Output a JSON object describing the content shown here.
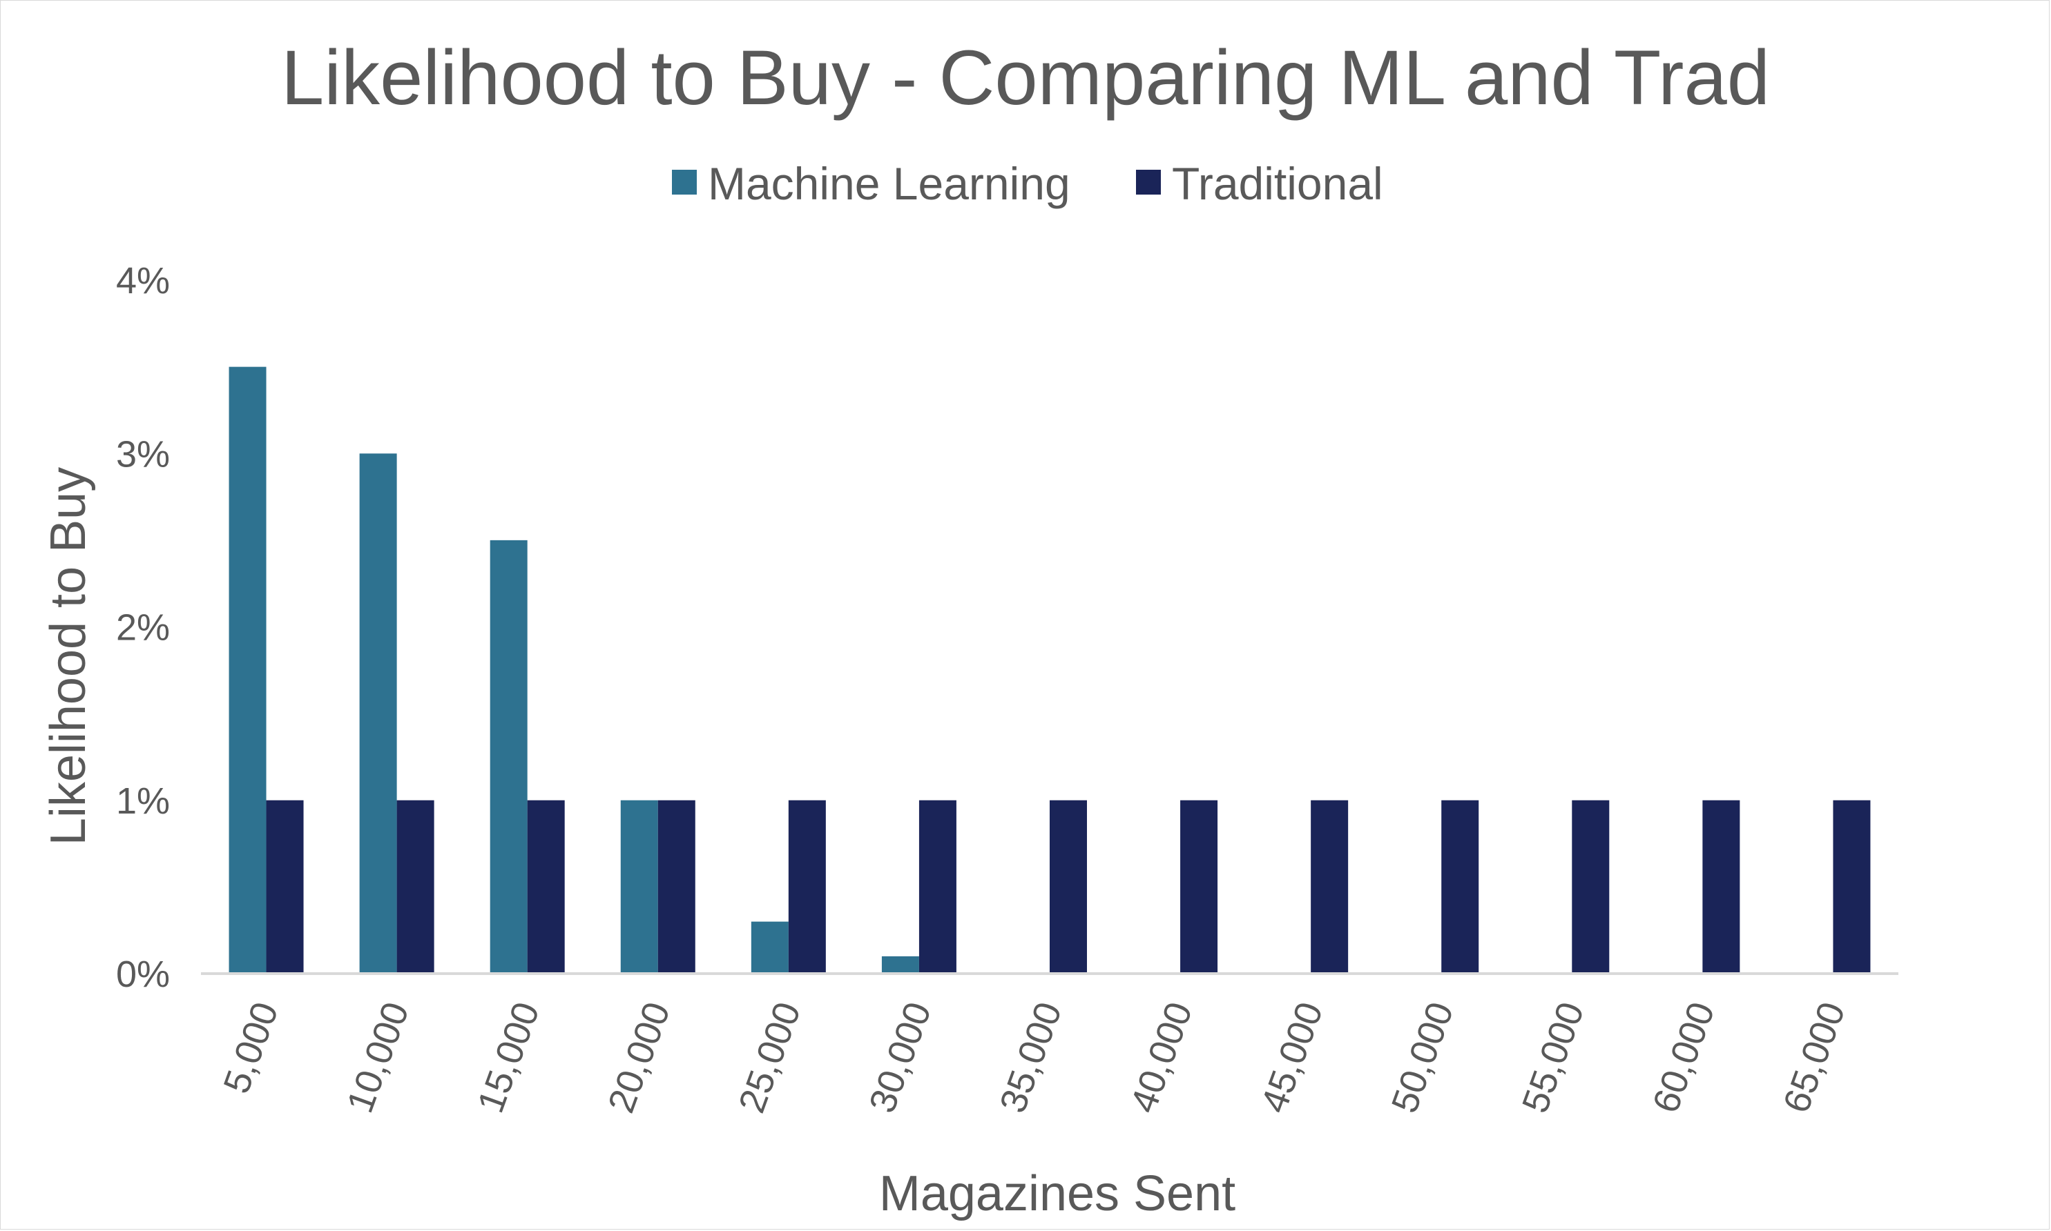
{
  "chart_data": {
    "type": "bar",
    "title": "Likelihood to Buy - Comparing ML and Trad",
    "xlabel": "Magazines Sent",
    "ylabel": "Likelihood to Buy",
    "categories": [
      "5,000",
      "10,000",
      "15,000",
      "20,000",
      "25,000",
      "30,000",
      "35,000",
      "40,000",
      "45,000",
      "50,000",
      "55,000",
      "60,000",
      "65,000"
    ],
    "series": [
      {
        "name": "Machine Learning",
        "color": "#2e7290",
        "values": [
          0.035,
          0.03,
          0.025,
          0.01,
          0.003,
          0.001,
          0,
          0,
          0,
          0,
          0,
          0,
          0
        ]
      },
      {
        "name": "Traditional",
        "color": "#1a2458",
        "values": [
          0.01,
          0.01,
          0.01,
          0.01,
          0.01,
          0.01,
          0.01,
          0.01,
          0.01,
          0.01,
          0.01,
          0.01,
          0.01
        ]
      }
    ],
    "ylim": [
      0,
      0.04
    ],
    "yticks": [
      "0%",
      "1%",
      "2%",
      "3%",
      "4%"
    ],
    "ytick_values": [
      0,
      0.01,
      0.02,
      0.03,
      0.04
    ],
    "x_tick_rotation": "-70deg",
    "legend_position": "top-center",
    "grid": false,
    "axis_color": "#d9d9d9",
    "text_color": "#595959"
  }
}
